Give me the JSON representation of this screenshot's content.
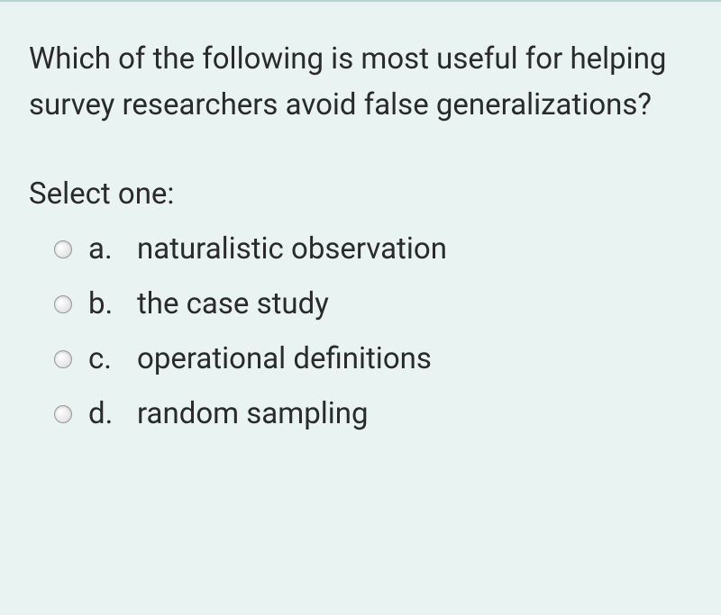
{
  "question": {
    "text": "Which of the following is most useful for helping survey researchers avoid false generalizations?",
    "prompt": "Select one:",
    "options": [
      {
        "letter": "a.",
        "text": "naturalistic observation"
      },
      {
        "letter": "b.",
        "text": "the case study"
      },
      {
        "letter": "c.",
        "text": "operational definitions"
      },
      {
        "letter": "d.",
        "text": "random sampling"
      }
    ]
  },
  "colors": {
    "background": "#e9f3f1",
    "border_top": "#b8d4d0",
    "text": "#2a2a2a"
  },
  "typography": {
    "font_family": "Roboto, Helvetica Neue, Arial, sans-serif",
    "question_fontsize": 33,
    "option_fontsize": 33
  }
}
